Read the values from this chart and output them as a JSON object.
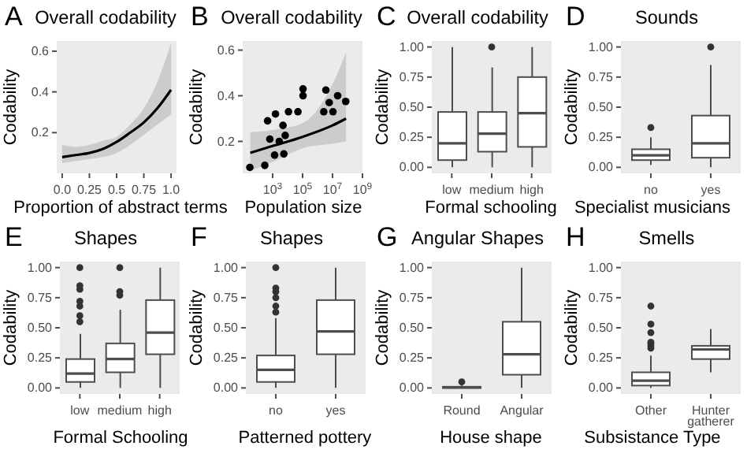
{
  "chart_data": [
    {
      "type": "line",
      "title": "Overall codability",
      "annotations": [
        "A"
      ],
      "xlabel": "Proportion of abstract terms",
      "ylabel": "Codability",
      "x": [
        0,
        0.125,
        0.25,
        0.375,
        0.5,
        0.625,
        0.75,
        0.875,
        1
      ],
      "series": [
        {
          "type": "line",
          "color": "#000000",
          "values": [
            0.08,
            0.09,
            0.1,
            0.12,
            0.154,
            0.2,
            0.25,
            0.32,
            0.41
          ],
          "lower": [
            0.05,
            0.06,
            0.07,
            0.08,
            0.1,
            0.14,
            0.19,
            0.24,
            0.29
          ],
          "upper": [
            0.14,
            0.13,
            0.14,
            0.16,
            0.18,
            0.24,
            0.32,
            0.45,
            0.64
          ]
        }
      ],
      "xlim": [
        -0.05,
        1.05
      ],
      "ylim": [
        0,
        0.65
      ],
      "xticks": [
        {
          "value": 0,
          "label": "0.0"
        },
        0.25,
        0.5,
        0.75,
        {
          "value": 1,
          "label": "1.0"
        }
      ],
      "yticks": [
        0.2,
        0.4,
        0.6
      ],
      "marker": "none"
    },
    {
      "type": "scatter",
      "title": "Overall codability",
      "annotations": [
        "B"
      ],
      "xlabel": "Population size",
      "ylabel": "Codability",
      "log": "x",
      "series": [
        {
          "type": "scatter",
          "marker": "circle",
          "color": "#000000",
          "x": [
            30,
            300,
            460,
            650,
            1350,
            1550,
            2750,
            4900,
            5600,
            6900,
            11500,
            49000,
            107000,
            107000,
            2600000,
            3600000,
            6000000,
            10700000,
            22000000,
            76000000
          ],
          "values": [
            0.086,
            0.095,
            0.29,
            0.21,
            0.14,
            0.32,
            0.2,
            0.27,
            0.145,
            0.226,
            0.33,
            0.33,
            0.43,
            0.4,
            0.33,
            0.425,
            0.37,
            0.33,
            0.4,
            0.375
          ]
        },
        {
          "type": "line",
          "color": "#000000",
          "x": [
            32,
            1000,
            100000,
            10000000,
            80000000
          ],
          "values": [
            0.15,
            0.18,
            0.22,
            0.27,
            0.3
          ],
          "lower": [
            0.07,
            0.11,
            0.17,
            0.19,
            0.2
          ],
          "upper": [
            0.24,
            0.25,
            0.28,
            0.45,
            0.59
          ]
        }
      ],
      "xlim": [
        10,
        1000000000
      ],
      "ylim": [
        0.06,
        0.64
      ],
      "xticks": [
        {
          "value": 1000,
          "label": "10$^{3}$"
        },
        {
          "value": 100000,
          "label": "10$^{5}$"
        },
        {
          "value": 10000000,
          "label": "10$^{7}$"
        },
        {
          "value": 1000000000,
          "label": "10$^{9}$"
        }
      ],
      "yticks": [
        0.2,
        0.4,
        0.6
      ]
    },
    {
      "type": "box",
      "title": "Overall codability",
      "annotations": [
        "C"
      ],
      "xlabel": "Formal schooling",
      "ylabel": "Codability",
      "categories": [
        "low",
        "medium",
        "high"
      ],
      "boxes": [
        {
          "low": 0,
          "q1": 0.06,
          "median": 0.2,
          "q3": 0.46,
          "high": 1.0
        },
        {
          "low": 0,
          "q1": 0.13,
          "median": 0.28,
          "q3": 0.46,
          "high": 0.83,
          "outliers": [
            1.0
          ]
        },
        {
          "low": 0,
          "q1": 0.17,
          "median": 0.45,
          "q3": 0.75,
          "high": 1.0
        }
      ],
      "ylim": [
        -0.05,
        1.05
      ],
      "yticks": [
        {
          "value": 0,
          "label": "0.00"
        },
        0.25,
        {
          "value": 0.5,
          "label": "0.50"
        },
        0.75,
        {
          "value": 1,
          "label": "1.00"
        }
      ]
    },
    {
      "type": "box",
      "title": "Sounds",
      "annotations": [
        "D"
      ],
      "xlabel": "Specialist musicians",
      "ylabel": "Codability",
      "categories": [
        "no",
        "yes"
      ],
      "boxes": [
        {
          "low": 0.02,
          "q1": 0.06,
          "median": 0.1,
          "q3": 0.15,
          "high": 0.25,
          "outliers": [
            0.33
          ]
        },
        {
          "low": 0,
          "q1": 0.08,
          "median": 0.2,
          "q3": 0.43,
          "high": 0.85,
          "outliers": [
            1.0
          ]
        }
      ],
      "ylim": [
        -0.05,
        1.05
      ],
      "yticks": [
        {
          "value": 0,
          "label": "0.00"
        },
        0.25,
        {
          "value": 0.5,
          "label": "0.50"
        },
        0.75,
        {
          "value": 1,
          "label": "1.00"
        }
      ]
    },
    {
      "type": "box",
      "title": "Shapes",
      "annotations": [
        "E"
      ],
      "xlabel": "Formal Schooling",
      "ylabel": "Codability",
      "categories": [
        "low",
        "medium",
        "high"
      ],
      "boxes": [
        {
          "low": 0,
          "q1": 0.05,
          "median": 0.12,
          "q3": 0.24,
          "high": 0.45,
          "outliers": [
            0.55,
            0.6,
            0.68,
            0.72,
            0.82,
            0.85,
            1.0
          ]
        },
        {
          "low": 0,
          "q1": 0.13,
          "median": 0.24,
          "q3": 0.37,
          "high": 0.65,
          "outliers": [
            0.77,
            0.8,
            1.0
          ]
        },
        {
          "low": 0,
          "q1": 0.28,
          "median": 0.46,
          "q3": 0.73,
          "high": 1.0
        }
      ],
      "ylim": [
        -0.05,
        1.05
      ],
      "yticks": [
        {
          "value": 0,
          "label": "0.00"
        },
        0.25,
        {
          "value": 0.5,
          "label": "0.50"
        },
        0.75,
        {
          "value": 1,
          "label": "1.00"
        }
      ]
    },
    {
      "type": "box",
      "title": "Shapes",
      "annotations": [
        "F"
      ],
      "xlabel": "Patterned pottery",
      "ylabel": "Codability",
      "categories": [
        "no",
        "yes"
      ],
      "boxes": [
        {
          "low": 0,
          "q1": 0.05,
          "median": 0.15,
          "q3": 0.27,
          "high": 0.58,
          "outliers": [
            0.63,
            0.68,
            0.75,
            0.8,
            0.83,
            1.0
          ]
        },
        {
          "low": 0,
          "q1": 0.28,
          "median": 0.47,
          "q3": 0.73,
          "high": 1.0
        }
      ],
      "ylim": [
        -0.05,
        1.05
      ],
      "yticks": [
        {
          "value": 0,
          "label": "0.00"
        },
        0.25,
        {
          "value": 0.5,
          "label": "0.50"
        },
        0.75,
        {
          "value": 1,
          "label": "1.00"
        }
      ]
    },
    {
      "type": "box",
      "title": "Angular Shapes",
      "annotations": [
        "G"
      ],
      "xlabel": "House shape",
      "ylabel": "Codability",
      "categories": [
        "Round",
        "Angular"
      ],
      "boxes": [
        {
          "low": 0,
          "q1": 0,
          "median": 0.005,
          "q3": 0.01,
          "high": 0.02,
          "outliers": [
            0.05
          ]
        },
        {
          "low": 0,
          "q1": 0.11,
          "median": 0.28,
          "q3": 0.55,
          "high": 1.0
        }
      ],
      "ylim": [
        -0.05,
        1.05
      ],
      "yticks": [
        {
          "value": 0,
          "label": "0.00"
        },
        0.25,
        {
          "value": 0.5,
          "label": "0.50"
        },
        0.75,
        {
          "value": 1,
          "label": "1.00"
        }
      ]
    },
    {
      "type": "box",
      "title": "Smells",
      "annotations": [
        "H"
      ],
      "xlabel": "Subsistance Type",
      "ylabel": "Codability",
      "categories": [
        "Other",
        "Hunter gatherer"
      ],
      "boxes": [
        {
          "low": 0,
          "q1": 0.02,
          "median": 0.06,
          "q3": 0.13,
          "high": 0.27,
          "outliers": [
            0.33,
            0.35,
            0.37,
            0.38,
            0.46,
            0.53,
            0.68
          ]
        },
        {
          "low": 0.13,
          "q1": 0.24,
          "median": 0.32,
          "q3": 0.35,
          "high": 0.49
        }
      ],
      "ylim": [
        -0.05,
        1.05
      ],
      "yticks": [
        {
          "value": 0,
          "label": "0.00"
        },
        0.25,
        {
          "value": 0.5,
          "label": "0.50"
        },
        0.75,
        {
          "value": 1,
          "label": "1.00"
        }
      ]
    }
  ]
}
